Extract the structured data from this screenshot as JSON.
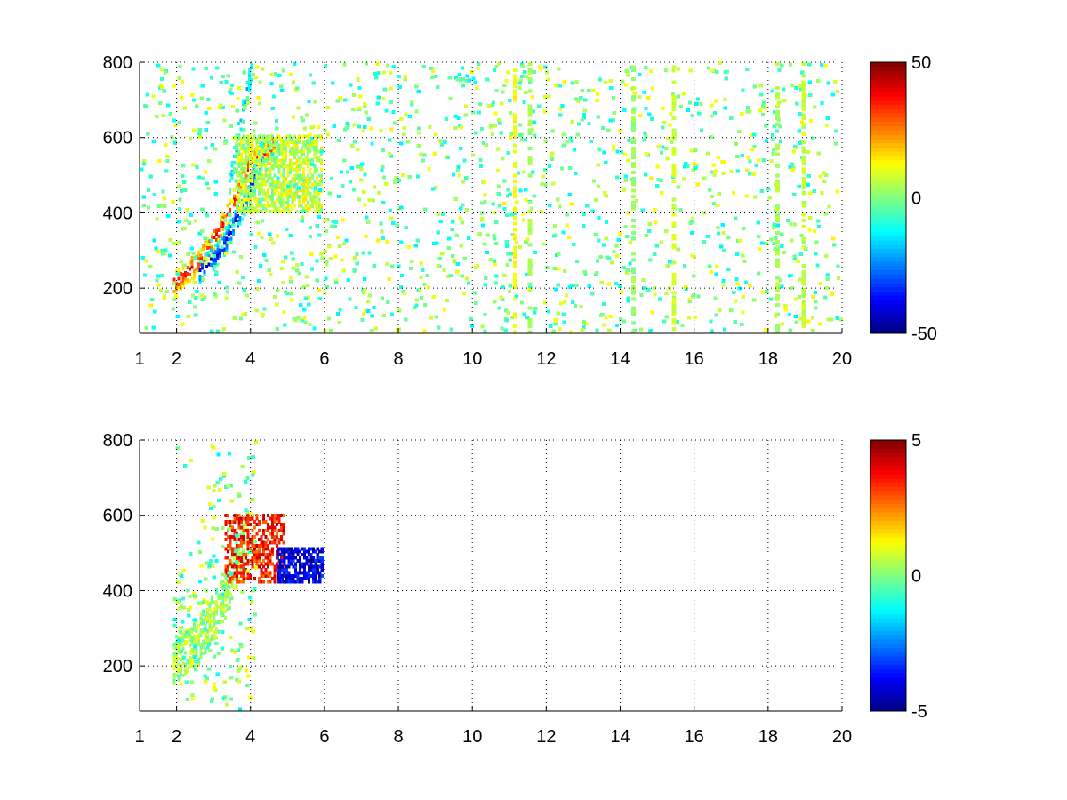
{
  "chart_data": [
    {
      "type": "heatmap",
      "title": "",
      "xlabel": "",
      "ylabel": "",
      "xlim": [
        1,
        20
      ],
      "ylim": [
        80,
        800
      ],
      "x_ticks": [
        "1",
        "2",
        "4",
        "6",
        "8",
        "10",
        "12",
        "14",
        "16",
        "18",
        "20"
      ],
      "y_ticks": [
        "200",
        "400",
        "600",
        "800"
      ],
      "grid": true,
      "colormap": "jet",
      "clim": [
        -50,
        50
      ],
      "colorbar_ticks": [
        "50",
        "0",
        "-50"
      ],
      "features": [
        {
          "shape": "ridge",
          "x": [
            1.9,
            2.6,
            3.3,
            3.9,
            4.6
          ],
          "y": [
            210,
            270,
            380,
            520,
            580
          ],
          "value": 38,
          "width": 30
        },
        {
          "shape": "ridge",
          "x": [
            2.6,
            3.2,
            3.8,
            4.3
          ],
          "y": [
            240,
            300,
            420,
            560
          ],
          "value": -42,
          "width": 28
        },
        {
          "shape": "ridge",
          "x": [
            3.4,
            3.7,
            4.0
          ],
          "y": [
            480,
            640,
            780
          ],
          "value": -18,
          "width": 30
        },
        {
          "shape": "blob",
          "x": [
            3.6,
            5.9
          ],
          "y": [
            400,
            600
          ],
          "value": 6,
          "density": 0.7
        }
      ],
      "noise_columns": [
        {
          "x": 11.1,
          "value": 12
        },
        {
          "x": 11.5,
          "value": 4
        },
        {
          "x": 14.3,
          "value": 2
        },
        {
          "x": 15.4,
          "value": 8
        },
        {
          "x": 18.2,
          "value": 5
        },
        {
          "x": 18.9,
          "value": 6
        }
      ]
    },
    {
      "type": "heatmap",
      "title": "",
      "xlabel": "",
      "ylabel": "",
      "xlim": [
        1,
        20
      ],
      "ylim": [
        80,
        800
      ],
      "x_ticks": [
        "1",
        "2",
        "4",
        "6",
        "8",
        "10",
        "12",
        "14",
        "16",
        "18",
        "20"
      ],
      "y_ticks": [
        "200",
        "400",
        "600",
        "800"
      ],
      "grid": true,
      "colormap": "jet",
      "clim": [
        -5,
        5
      ],
      "colorbar_ticks": [
        "5",
        "0",
        "-5"
      ],
      "features": [
        {
          "shape": "ridge",
          "x": [
            1.9,
            2.6,
            3.3,
            3.9
          ],
          "y": [
            210,
            270,
            380,
            560
          ],
          "value": 0.5,
          "width": 60
        },
        {
          "shape": "blob",
          "x": [
            3.3,
            4.9
          ],
          "y": [
            420,
            600
          ],
          "value": 3.5,
          "density": 0.55
        },
        {
          "shape": "blob",
          "x": [
            4.7,
            5.9
          ],
          "y": [
            420,
            510
          ],
          "value": -4.0,
          "density": 0.7
        }
      ]
    }
  ]
}
